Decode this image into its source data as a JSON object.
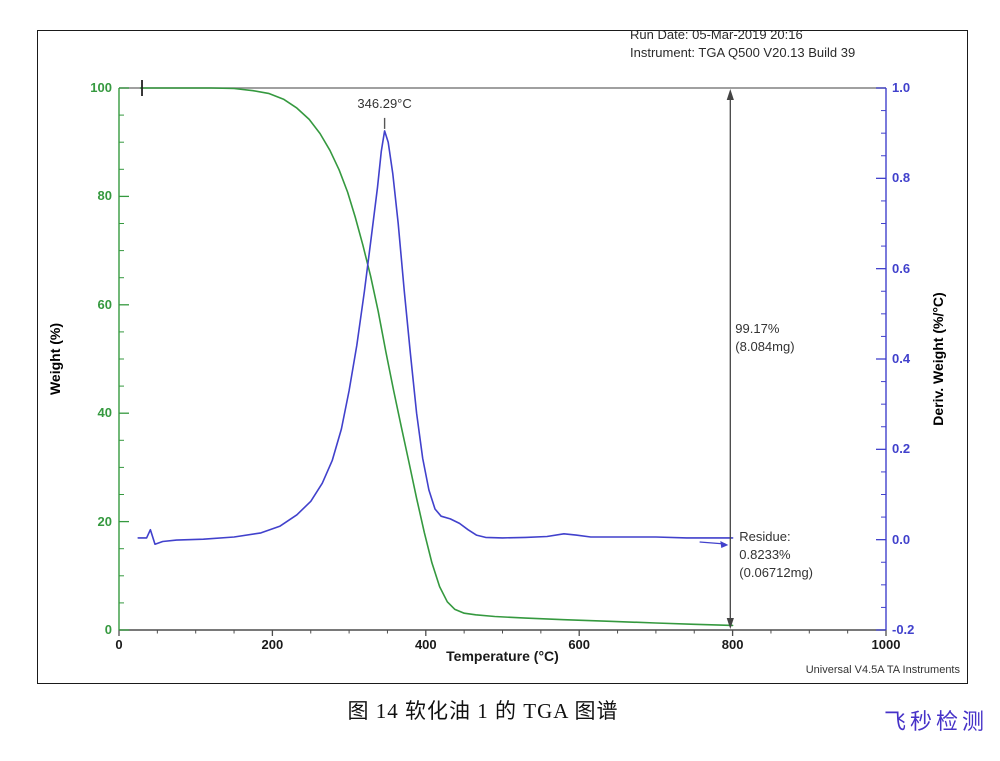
{
  "header": {
    "run_date": "Run Date: 05-Mar-2019 20:16",
    "instrument": "Instrument: TGA Q500 V20.13 Build 39"
  },
  "annotations": {
    "peak_temp": "346.29°C",
    "step_pct": "99.17%",
    "step_mg": "(8.084mg)",
    "residue_label": "Residue:",
    "residue_pct": "0.8233%",
    "residue_mg": "(0.06712mg)"
  },
  "footer": {
    "credit": "Universal V4.5A TA Instruments"
  },
  "caption": "图 14 软化油 1 的 TGA 图谱",
  "watermark": "飞秒检测",
  "colors": {
    "weight": "#35993f",
    "deriv": "#4141cc",
    "frame": "#808080",
    "axis": "#4d4d4d",
    "marker": "#444444",
    "text": "#333333",
    "watermark": "#4632c8"
  },
  "chart_data": {
    "type": "line",
    "title": "",
    "xlabel": "Temperature (°C)",
    "xlim": [
      0,
      1000
    ],
    "x_major_ticks": [
      0,
      200,
      400,
      600,
      800,
      1000
    ],
    "x_tick_labels": [
      "0",
      "200",
      "400",
      "600",
      "800",
      "1000"
    ],
    "x_minor_step": 50,
    "grid": false,
    "legend": "none",
    "left_axis": {
      "label": "Weight (%)",
      "ylim": [
        0,
        100
      ],
      "major_ticks": [
        0,
        20,
        40,
        60,
        80,
        100
      ],
      "tick_labels": [
        "0",
        "20",
        "40",
        "60",
        "80",
        "100"
      ],
      "minor_step": 5
    },
    "right_axis": {
      "label": "Deriv. Weight (%/°C)",
      "ylim": [
        -0.2,
        1.0
      ],
      "major_ticks": [
        -0.2,
        0.0,
        0.2,
        0.4,
        0.6,
        0.8,
        1.0
      ],
      "tick_labels": [
        "-0.2",
        "0.0",
        "0.2",
        "0.4",
        "0.6",
        "0.8",
        "1.0"
      ],
      "minor_step": 0.05
    },
    "peak": {
      "x": 346.29,
      "y": 0.905,
      "label": "346.29°C"
    },
    "step_arrow": {
      "x": 797,
      "from_weight": 100,
      "to_weight": 0.82,
      "pct": "99.17%",
      "mg": "(8.084mg)"
    },
    "residue": {
      "pct": "0.8233%",
      "mg": "(0.06712mg)"
    },
    "start_marker_x": 30,
    "series": [
      {
        "name": "Weight",
        "axis": "left",
        "color_key": "weight",
        "points": [
          [
            28,
            100
          ],
          [
            80,
            100
          ],
          [
            120,
            100
          ],
          [
            150,
            99.9
          ],
          [
            175,
            99.5
          ],
          [
            195,
            99.0
          ],
          [
            215,
            97.9
          ],
          [
            232,
            96.3
          ],
          [
            248,
            94.2
          ],
          [
            262,
            91.6
          ],
          [
            275,
            88.5
          ],
          [
            287,
            84.9
          ],
          [
            298,
            80.8
          ],
          [
            308,
            76.2
          ],
          [
            318,
            71.0
          ],
          [
            328,
            65.3
          ],
          [
            338,
            58.8
          ],
          [
            348,
            51.3
          ],
          [
            358,
            44.2
          ],
          [
            368,
            37.5
          ],
          [
            378,
            31.0
          ],
          [
            388,
            24.3
          ],
          [
            398,
            18.0
          ],
          [
            408,
            12.4
          ],
          [
            418,
            8.0
          ],
          [
            428,
            5.2
          ],
          [
            438,
            3.8
          ],
          [
            450,
            3.1
          ],
          [
            465,
            2.8
          ],
          [
            490,
            2.5
          ],
          [
            530,
            2.2
          ],
          [
            580,
            1.9
          ],
          [
            640,
            1.6
          ],
          [
            700,
            1.3
          ],
          [
            750,
            1.05
          ],
          [
            800,
            0.85
          ]
        ]
      },
      {
        "name": "Deriv. Weight",
        "axis": "right",
        "color_key": "deriv",
        "points": [
          [
            25,
            0.004
          ],
          [
            36,
            0.004
          ],
          [
            41,
            0.022
          ],
          [
            47,
            -0.01
          ],
          [
            57,
            -0.004
          ],
          [
            75,
            -0.001
          ],
          [
            110,
            0.001
          ],
          [
            150,
            0.006
          ],
          [
            185,
            0.015
          ],
          [
            210,
            0.03
          ],
          [
            232,
            0.055
          ],
          [
            250,
            0.085
          ],
          [
            265,
            0.125
          ],
          [
            278,
            0.175
          ],
          [
            290,
            0.245
          ],
          [
            300,
            0.33
          ],
          [
            310,
            0.43
          ],
          [
            320,
            0.55
          ],
          [
            329,
            0.67
          ],
          [
            337,
            0.78
          ],
          [
            342,
            0.86
          ],
          [
            346.29,
            0.905
          ],
          [
            351,
            0.88
          ],
          [
            357,
            0.81
          ],
          [
            364,
            0.7
          ],
          [
            372,
            0.55
          ],
          [
            380,
            0.41
          ],
          [
            388,
            0.28
          ],
          [
            396,
            0.18
          ],
          [
            404,
            0.11
          ],
          [
            412,
            0.068
          ],
          [
            420,
            0.052
          ],
          [
            432,
            0.046
          ],
          [
            444,
            0.036
          ],
          [
            455,
            0.022
          ],
          [
            466,
            0.01
          ],
          [
            478,
            0.005
          ],
          [
            500,
            0.004
          ],
          [
            530,
            0.005
          ],
          [
            558,
            0.007
          ],
          [
            580,
            0.013
          ],
          [
            596,
            0.01
          ],
          [
            615,
            0.006
          ],
          [
            660,
            0.006
          ],
          [
            700,
            0.006
          ],
          [
            740,
            0.004
          ],
          [
            800,
            0.004
          ]
        ]
      }
    ]
  }
}
